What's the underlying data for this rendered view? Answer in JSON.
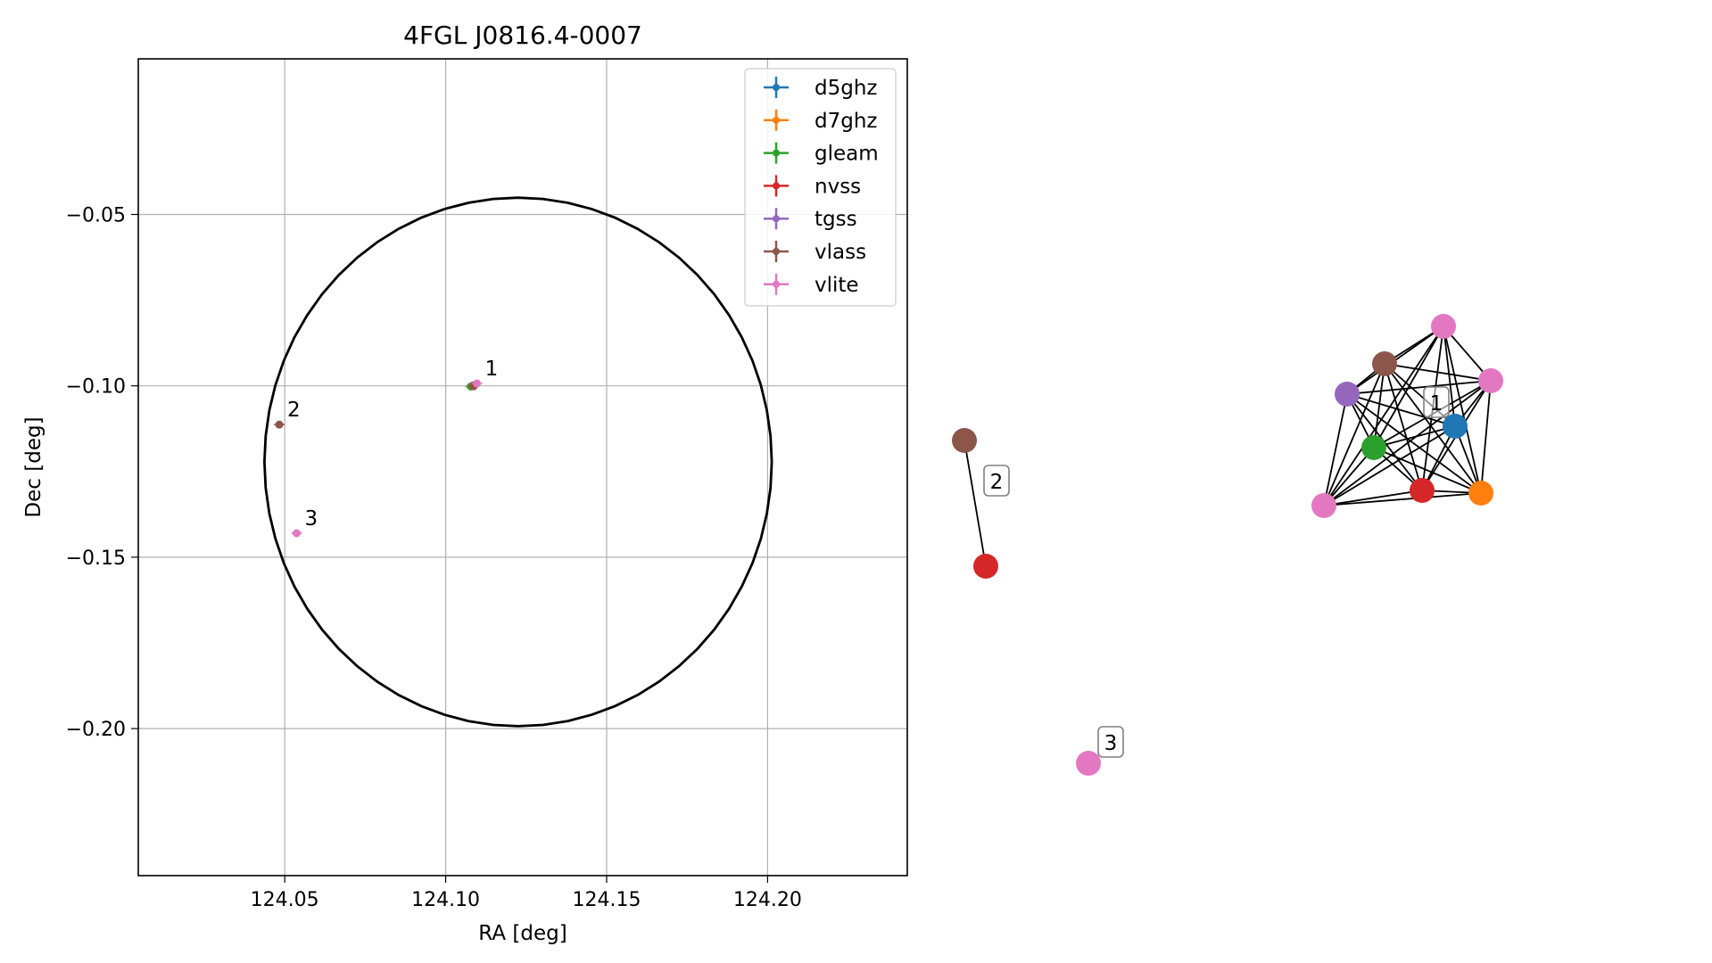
{
  "chart_data": [
    {
      "type": "scatter",
      "title": "4FGL J0816.4-0007",
      "xlabel": "RA [deg]",
      "ylabel": "Dec [deg]",
      "xlim": [
        124.0045,
        124.2434
      ],
      "ylim": [
        -0.2429,
        -0.0046
      ],
      "xticks": [
        124.05,
        124.1,
        124.15,
        124.2
      ],
      "xtick_labels": [
        "124.05",
        "124.10",
        "124.15",
        "124.20"
      ],
      "yticks": [
        -0.05,
        -0.1,
        -0.15,
        -0.2
      ],
      "ytick_labels": [
        "−0.05",
        "−0.10",
        "−0.15",
        "−0.20"
      ],
      "grid": true,
      "legend_position": "top-right",
      "ellipse": {
        "ra": 124.1225,
        "dec": -0.1222,
        "semi_ra": 0.0788,
        "semi_dec": 0.0771,
        "color": "#000000"
      },
      "series": [
        {
          "name": "d5ghz",
          "color": "#1f77b4",
          "points": [
            {
              "ra": 124.1086,
              "dec": -0.0999
            }
          ]
        },
        {
          "name": "d7ghz",
          "color": "#ff7f0e",
          "points": [
            {
              "ra": 124.1086,
              "dec": -0.0999
            }
          ]
        },
        {
          "name": "gleam",
          "color": "#2ca02c",
          "points": [
            {
              "ra": 124.1078,
              "dec": -0.1002
            }
          ]
        },
        {
          "name": "nvss",
          "color": "#d62728",
          "points": [
            {
              "ra": 124.1087,
              "dec": -0.1001
            }
          ]
        },
        {
          "name": "tgss",
          "color": "#9467bd",
          "points": [
            {
              "ra": 124.1086,
              "dec": -0.0999
            }
          ]
        },
        {
          "name": "vlass",
          "color": "#8c564b",
          "points": [
            {
              "ra": 124.1086,
              "dec": -0.0999
            },
            {
              "ra": 124.0483,
              "dec": -0.1113
            }
          ]
        },
        {
          "name": "vlite",
          "color": "#e377c2",
          "points": [
            {
              "ra": 124.1097,
              "dec": -0.0993
            },
            {
              "ra": 124.0537,
              "dec": -0.143
            }
          ]
        }
      ],
      "annotations": [
        {
          "text": "1",
          "ra": 124.1097,
          "dec": -0.0993
        },
        {
          "text": "2",
          "ra": 124.0483,
          "dec": -0.1113
        },
        {
          "text": "3",
          "ra": 124.0537,
          "dec": -0.143
        }
      ]
    },
    {
      "type": "network",
      "nodes": [
        {
          "id": "a1",
          "catalog": "vlite",
          "color": "#e377c2"
        },
        {
          "id": "a2",
          "catalog": "vlass",
          "color": "#8c564b"
        },
        {
          "id": "a3",
          "catalog": "vlite",
          "color": "#e377c2"
        },
        {
          "id": "a4",
          "catalog": "tgss",
          "color": "#9467bd"
        },
        {
          "id": "a5",
          "catalog": "d5ghz",
          "color": "#1f77b4"
        },
        {
          "id": "a6",
          "catalog": "gleam",
          "color": "#2ca02c"
        },
        {
          "id": "a7",
          "catalog": "nvss",
          "color": "#d62728"
        },
        {
          "id": "a8",
          "catalog": "d7ghz",
          "color": "#ff7f0e"
        },
        {
          "id": "a9",
          "catalog": "vlite",
          "color": "#e377c2"
        },
        {
          "id": "b1",
          "catalog": "vlass",
          "color": "#8c564b"
        },
        {
          "id": "b2",
          "catalog": "nvss",
          "color": "#d62728"
        },
        {
          "id": "c1",
          "catalog": "vlite",
          "color": "#e377c2"
        }
      ],
      "edges": [
        [
          "a1",
          "a2"
        ],
        [
          "a1",
          "a3"
        ],
        [
          "a1",
          "a4"
        ],
        [
          "a1",
          "a5"
        ],
        [
          "a1",
          "a6"
        ],
        [
          "a1",
          "a7"
        ],
        [
          "a1",
          "a8"
        ],
        [
          "a1",
          "a9"
        ],
        [
          "a2",
          "a3"
        ],
        [
          "a2",
          "a4"
        ],
        [
          "a2",
          "a5"
        ],
        [
          "a2",
          "a6"
        ],
        [
          "a2",
          "a7"
        ],
        [
          "a2",
          "a8"
        ],
        [
          "a2",
          "a9"
        ],
        [
          "a3",
          "a4"
        ],
        [
          "a3",
          "a5"
        ],
        [
          "a3",
          "a6"
        ],
        [
          "a3",
          "a7"
        ],
        [
          "a3",
          "a8"
        ],
        [
          "a3",
          "a9"
        ],
        [
          "a4",
          "a5"
        ],
        [
          "a4",
          "a6"
        ],
        [
          "a4",
          "a7"
        ],
        [
          "a4",
          "a8"
        ],
        [
          "a4",
          "a9"
        ],
        [
          "a5",
          "a6"
        ],
        [
          "a5",
          "a7"
        ],
        [
          "a5",
          "a8"
        ],
        [
          "a5",
          "a9"
        ],
        [
          "a6",
          "a7"
        ],
        [
          "a6",
          "a8"
        ],
        [
          "a6",
          "a9"
        ],
        [
          "a7",
          "a8"
        ],
        [
          "a7",
          "a9"
        ],
        [
          "a8",
          "a9"
        ],
        [
          "b1",
          "b2"
        ]
      ],
      "group_labels": [
        {
          "text": "1",
          "group": "a"
        },
        {
          "text": "2",
          "group": "b"
        },
        {
          "text": "3",
          "group": "c"
        }
      ]
    }
  ]
}
